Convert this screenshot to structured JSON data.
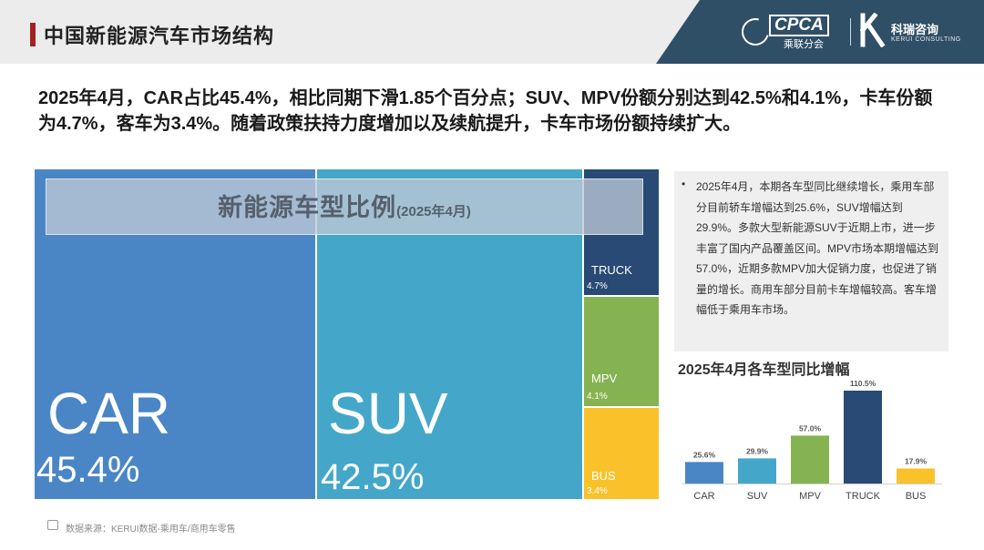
{
  "header": {
    "title": "中国新能源汽车市场结构",
    "logo_cpca_text": "CPCA",
    "logo_cpca_sub": "乘联分会",
    "logo_kerui_cn": "科瑞咨询",
    "logo_kerui_en": "KERUI CONSULTING"
  },
  "summary": "2025年4月，CAR占比45.4%，相比同期下滑1.85个百分点；SUV、MPV份额分别达到42.5%和4.1%，卡车份额为4.7%，客车为3.4%。随着政策扶持力度增加以及续航提升，卡车市场份额持续扩大。",
  "note": {
    "bullet": "•",
    "text": "2025年4月，本期各车型同比继续增长，乘用车部分目前轿车增幅达到25.6%，SUV增幅达到29.9%。多款大型新能源SUV于近期上市，进一步丰富了国内产品覆盖区间。MPV市场本期增幅达到57.0%，近期多款MPV加大促销力度，也促进了销量的增长。商用车部分目前卡车增幅较高。客车增幅低于乘用车市场。"
  },
  "footer": {
    "source": "数据来源：KERUI数据-乘用车/商用车零售"
  },
  "colors": {
    "car": "#4a86c5",
    "suv": "#44a7c9",
    "truck": "#284a74",
    "mpv": "#86b351",
    "bus": "#fac22a"
  },
  "chart_data": [
    {
      "type": "treemap",
      "title": "新能源车型比例",
      "subtitle": "(2025年4月)",
      "items": [
        {
          "name": "CAR",
          "label": "45.4%",
          "value": 45.4
        },
        {
          "name": "SUV",
          "label": "42.5%",
          "value": 42.5
        },
        {
          "name": "TRUCK",
          "label": "4.7%",
          "value": 4.7
        },
        {
          "name": "MPV",
          "label": "4.1%",
          "value": 4.1
        },
        {
          "name": "BUS",
          "label": "3.4%",
          "value": 3.4
        }
      ]
    },
    {
      "type": "bar",
      "title": "2025年4月各车型同比增幅",
      "categories": [
        "CAR",
        "SUV",
        "MPV",
        "TRUCK",
        "BUS"
      ],
      "values": [
        25.6,
        29.9,
        57.0,
        110.5,
        17.9
      ],
      "data_labels": [
        "25.6%",
        "29.9%",
        "57.0%",
        "110.5%",
        "17.9%"
      ],
      "colors": [
        "#4a86c5",
        "#44a7c9",
        "#86b351",
        "#284a74",
        "#fac22a"
      ],
      "ylim": [
        0,
        110.5
      ]
    }
  ]
}
